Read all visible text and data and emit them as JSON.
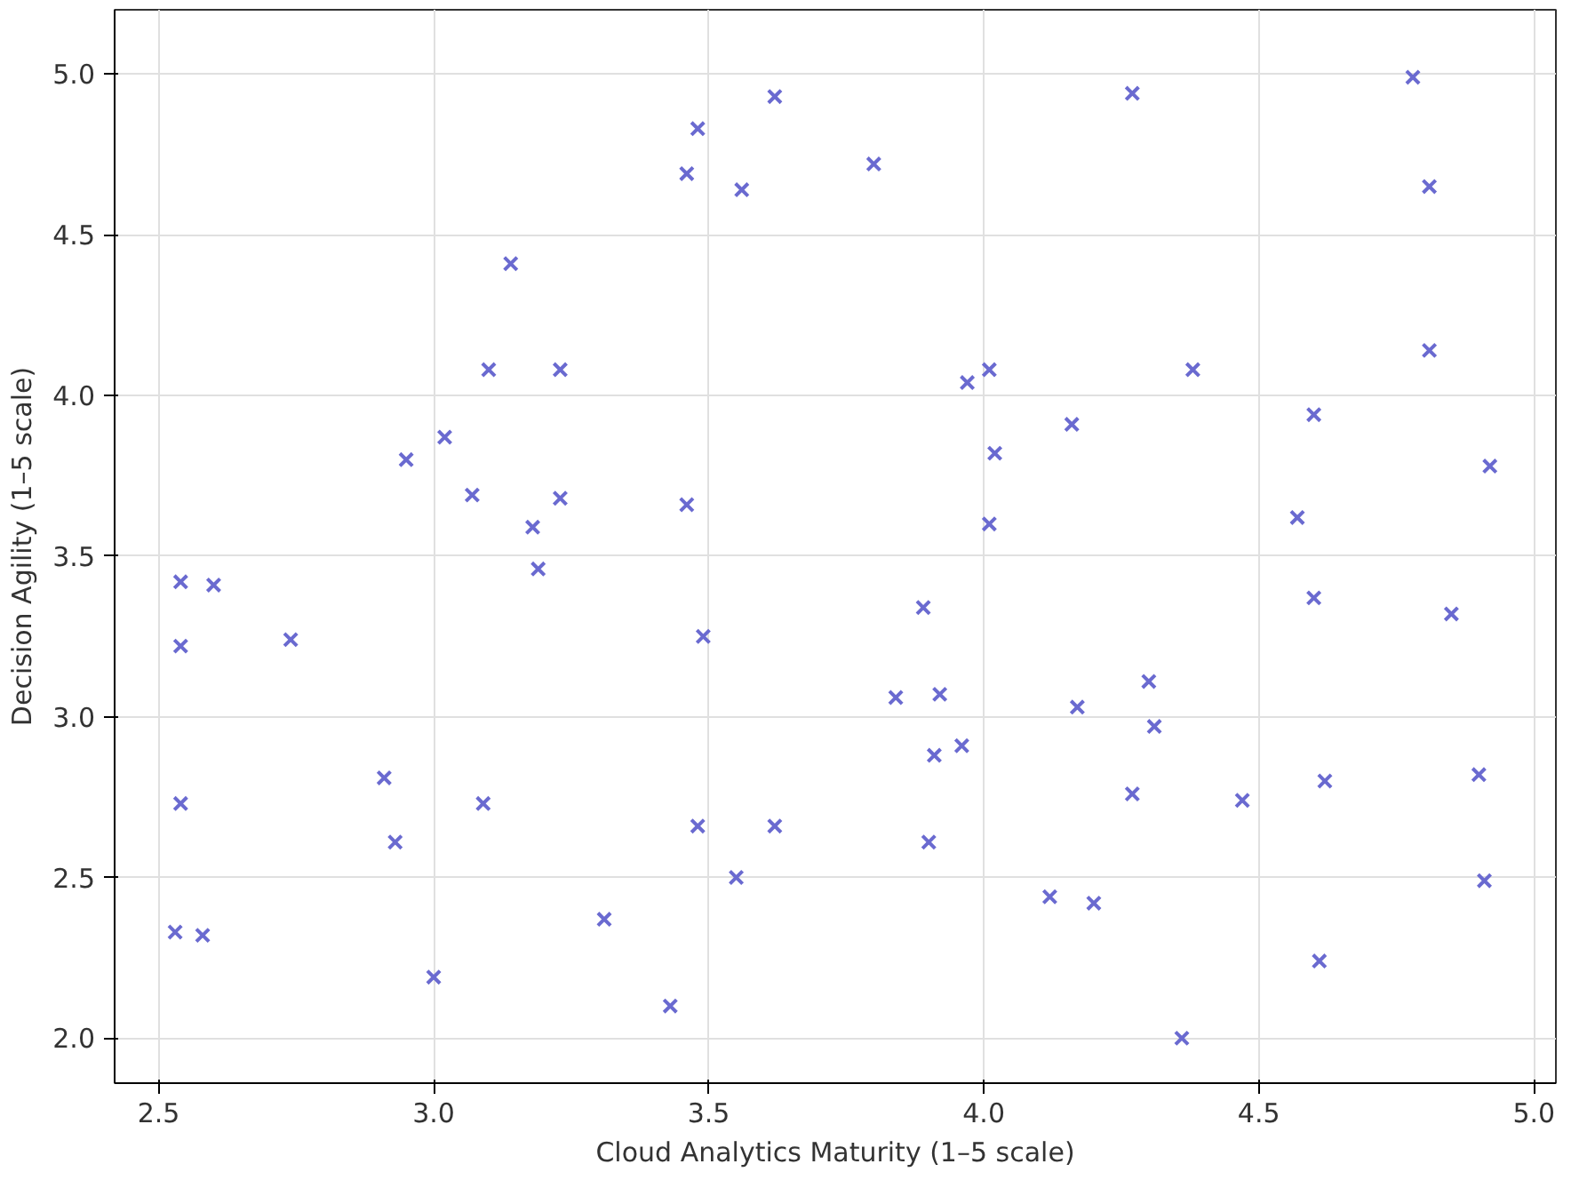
{
  "chart_data": {
    "type": "scatter",
    "xlabel": "Cloud Analytics Maturity (1–5 scale)",
    "ylabel": "Decision Agility (1–5 scale)",
    "x": [
      2.54,
      2.6,
      2.54,
      2.74,
      2.54,
      2.53,
      2.58,
      2.91,
      2.93,
      3.0,
      2.95,
      3.02,
      3.07,
      3.1,
      3.14,
      3.18,
      3.19,
      3.23,
      3.23,
      3.09,
      3.31,
      3.43,
      3.46,
      3.46,
      3.48,
      3.56,
      3.62,
      3.49,
      3.48,
      3.55,
      3.62,
      3.8,
      3.84,
      3.89,
      3.92,
      3.91,
      3.96,
      3.9,
      3.97,
      4.01,
      4.02,
      4.01,
      4.16,
      4.17,
      4.12,
      4.2,
      4.27,
      4.38,
      4.3,
      4.31,
      4.27,
      4.47,
      4.36,
      4.57,
      4.6,
      4.6,
      4.62,
      4.61,
      4.78,
      4.81,
      4.81,
      4.85,
      4.92,
      4.9,
      4.91
    ],
    "values": [
      3.42,
      3.41,
      3.22,
      3.24,
      2.73,
      2.33,
      2.32,
      2.81,
      2.61,
      2.19,
      3.8,
      3.87,
      3.69,
      4.08,
      4.41,
      3.59,
      3.46,
      3.68,
      4.08,
      2.73,
      2.37,
      2.1,
      3.66,
      4.69,
      4.83,
      4.64,
      4.93,
      3.25,
      2.66,
      2.5,
      2.66,
      4.72,
      3.06,
      3.34,
      3.07,
      2.88,
      2.91,
      2.61,
      4.04,
      4.08,
      3.82,
      3.6,
      3.91,
      3.03,
      2.44,
      2.42,
      4.94,
      4.08,
      3.11,
      2.97,
      2.76,
      2.74,
      2.0,
      3.62,
      3.94,
      3.37,
      2.8,
      2.24,
      4.99,
      4.65,
      4.14,
      3.32,
      3.78,
      2.82,
      2.49
    ],
    "color": "#6a6ad0",
    "marker": "cross",
    "grid": true,
    "xlim": [
      2.42,
      5.04
    ],
    "ylim": [
      1.86,
      5.2
    ],
    "xticks": [
      {
        "value": 2.5,
        "label": "2.5"
      },
      {
        "value": 3.0,
        "label": "3.0"
      },
      {
        "value": 3.5,
        "label": "3.5"
      },
      {
        "value": 4.0,
        "label": "4.0"
      },
      {
        "value": 4.5,
        "label": "4.5"
      },
      {
        "value": 5.0,
        "label": "5.0"
      }
    ],
    "yticks": [
      {
        "value": 2.0,
        "label": "2.0"
      },
      {
        "value": 2.5,
        "label": "2.5"
      },
      {
        "value": 3.0,
        "label": "3.0"
      },
      {
        "value": 3.5,
        "label": "3.5"
      },
      {
        "value": 4.0,
        "label": "4.0"
      },
      {
        "value": 4.5,
        "label": "4.5"
      },
      {
        "value": 5.0,
        "label": "5.0"
      }
    ]
  }
}
